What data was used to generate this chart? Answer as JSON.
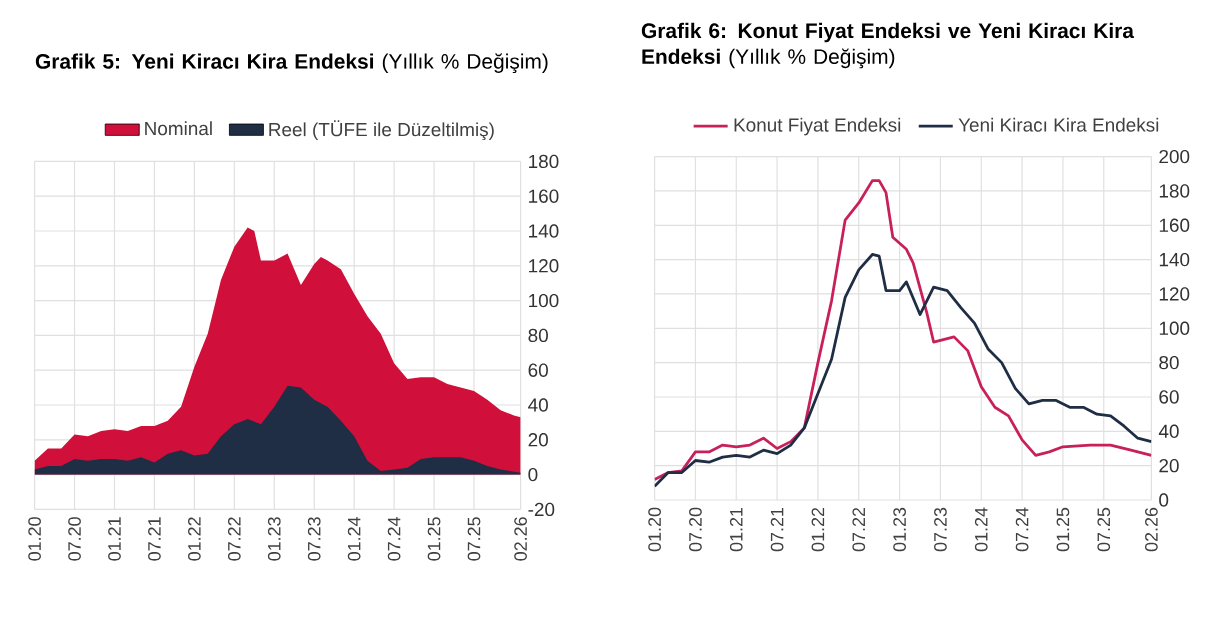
{
  "chart_data": [
    {
      "type": "area",
      "title": "**Grafik 5: Yeni Kiracı Kira Endeksi** (Yıllık % Değişim)",
      "xlim": [
        "2020-01",
        "2026-02"
      ],
      "xticks": [
        {
          "value": "2020-01",
          "label": "01.20"
        },
        {
          "value": "2020-07",
          "label": "07.20"
        },
        {
          "value": "2021-01",
          "label": "01.21"
        },
        {
          "value": "2021-07",
          "label": "07.21"
        },
        {
          "value": "2022-01",
          "label": "01.22"
        },
        {
          "value": "2022-07",
          "label": "07.22"
        },
        {
          "value": "2023-01",
          "label": "01.23"
        },
        {
          "value": "2023-07",
          "label": "07.23"
        },
        {
          "value": "2024-01",
          "label": "01.24"
        },
        {
          "value": "2024-07",
          "label": "07.24"
        },
        {
          "value": "2025-01",
          "label": "01.25"
        },
        {
          "value": "2025-07",
          "label": "07.25"
        },
        {
          "value": "2026-02",
          "label": "02.26"
        }
      ],
      "ylim": [
        -20,
        180
      ],
      "yticks": [
        -20,
        0,
        20,
        40,
        60,
        80,
        100,
        120,
        140,
        160,
        180
      ],
      "grid": true,
      "legend": "top",
      "series": [
        {
          "name": "Nominal",
          "color": "#d0103a",
          "x": [
            "2020-01",
            "2020-03",
            "2020-05",
            "2020-07",
            "2020-09",
            "2020-11",
            "2021-01",
            "2021-03",
            "2021-05",
            "2021-07",
            "2021-09",
            "2021-11",
            "2022-01",
            "2022-03",
            "2022-05",
            "2022-07",
            "2022-09",
            "2022-10",
            "2022-11",
            "2023-01",
            "2023-03",
            "2023-05",
            "2023-07",
            "2023-08",
            "2023-09",
            "2023-11",
            "2024-01",
            "2024-03",
            "2024-05",
            "2024-07",
            "2024-09",
            "2024-11",
            "2025-01",
            "2025-03",
            "2025-05",
            "2025-07",
            "2025-09",
            "2025-11",
            "2026-01",
            "2026-02"
          ],
          "values": [
            8,
            15,
            15,
            23,
            22,
            25,
            26,
            25,
            28,
            28,
            31,
            39,
            62,
            81,
            112,
            131,
            142,
            140,
            123,
            123,
            127,
            109,
            121,
            125,
            123,
            118,
            104,
            91,
            81,
            64,
            55,
            56,
            56,
            52,
            50,
            48,
            43,
            37,
            34,
            33
          ]
        },
        {
          "name": "Reel (TÜFE ile Düzeltilmiş)",
          "color": "#1f2d45",
          "x": [
            "2020-01",
            "2020-03",
            "2020-05",
            "2020-07",
            "2020-09",
            "2020-11",
            "2021-01",
            "2021-03",
            "2021-05",
            "2021-07",
            "2021-09",
            "2021-11",
            "2022-01",
            "2022-03",
            "2022-05",
            "2022-07",
            "2022-09",
            "2022-11",
            "2023-01",
            "2023-03",
            "2023-05",
            "2023-07",
            "2023-09",
            "2023-11",
            "2024-01",
            "2024-03",
            "2024-05",
            "2024-07",
            "2024-09",
            "2024-11",
            "2025-01",
            "2025-03",
            "2025-05",
            "2025-07",
            "2025-09",
            "2025-11",
            "2026-02"
          ],
          "values": [
            3,
            5,
            5,
            9,
            8,
            9,
            9,
            8,
            10,
            7,
            12,
            14,
            11,
            12,
            22,
            29,
            32,
            29,
            39,
            51,
            50,
            43,
            39,
            31,
            22,
            8,
            2,
            3,
            4,
            9,
            10,
            10,
            10,
            8,
            5,
            3,
            1
          ]
        }
      ]
    },
    {
      "type": "line",
      "title": "**Grafik 6: Konut Fiyat Endeksi ve Yeni Kiracı Kira Endeksi** (Yıllık % Değişim)",
      "xlim": [
        "2020-01",
        "2026-02"
      ],
      "xticks": [
        {
          "value": "2020-01",
          "label": "01.20"
        },
        {
          "value": "2020-07",
          "label": "07.20"
        },
        {
          "value": "2021-01",
          "label": "01.21"
        },
        {
          "value": "2021-07",
          "label": "07.21"
        },
        {
          "value": "2022-01",
          "label": "01.22"
        },
        {
          "value": "2022-07",
          "label": "07.22"
        },
        {
          "value": "2023-01",
          "label": "01.23"
        },
        {
          "value": "2023-07",
          "label": "07.23"
        },
        {
          "value": "2024-01",
          "label": "01.24"
        },
        {
          "value": "2024-07",
          "label": "07.24"
        },
        {
          "value": "2025-01",
          "label": "01.25"
        },
        {
          "value": "2025-07",
          "label": "07.25"
        },
        {
          "value": "2026-02",
          "label": "02.26"
        }
      ],
      "ylim": [
        0,
        200
      ],
      "yticks": [
        0,
        20,
        40,
        60,
        80,
        100,
        120,
        140,
        160,
        180,
        200
      ],
      "grid": true,
      "legend": "top",
      "series": [
        {
          "name": "Konut Fiyat Endeksi",
          "color": "#c8205a",
          "x": [
            "2020-01",
            "2020-03",
            "2020-05",
            "2020-07",
            "2020-09",
            "2020-11",
            "2021-01",
            "2021-03",
            "2021-05",
            "2021-07",
            "2021-09",
            "2021-11",
            "2022-01",
            "2022-03",
            "2022-05",
            "2022-07",
            "2022-09",
            "2022-10",
            "2022-11",
            "2022-12",
            "2023-02",
            "2023-03",
            "2023-05",
            "2023-06",
            "2023-09",
            "2023-11",
            "2024-01",
            "2024-03",
            "2024-05",
            "2024-07",
            "2024-09",
            "2024-11",
            "2025-01",
            "2025-05",
            "2025-08",
            "2025-11",
            "2026-02"
          ],
          "values": [
            12,
            16,
            17,
            28,
            28,
            32,
            31,
            32,
            36,
            30,
            34,
            42,
            80,
            116,
            163,
            173,
            186,
            186,
            179,
            153,
            146,
            138,
            109,
            92,
            95,
            87,
            66,
            54,
            49,
            35,
            26,
            28,
            31,
            32,
            32,
            29,
            26
          ]
        },
        {
          "name": "Yeni Kiracı Kira Endeksi",
          "color": "#1f2d45",
          "x": [
            "2020-01",
            "2020-03",
            "2020-05",
            "2020-07",
            "2020-09",
            "2020-11",
            "2021-01",
            "2021-03",
            "2021-05",
            "2021-07",
            "2021-09",
            "2021-11",
            "2022-01",
            "2022-03",
            "2022-05",
            "2022-07",
            "2022-09",
            "2022-10",
            "2022-11",
            "2023-01",
            "2023-02",
            "2023-04",
            "2023-06",
            "2023-08",
            "2023-10",
            "2023-12",
            "2024-02",
            "2024-04",
            "2024-06",
            "2024-08",
            "2024-10",
            "2024-12",
            "2025-02",
            "2025-04",
            "2025-06",
            "2025-08",
            "2025-10",
            "2025-12",
            "2026-02"
          ],
          "values": [
            8,
            16,
            16,
            23,
            22,
            25,
            26,
            25,
            29,
            27,
            32,
            42,
            62,
            82,
            118,
            134,
            143,
            142,
            122,
            122,
            127,
            108,
            124,
            122,
            112,
            103,
            88,
            80,
            65,
            56,
            58,
            58,
            54,
            54,
            50,
            49,
            43,
            36,
            34
          ]
        }
      ]
    }
  ]
}
